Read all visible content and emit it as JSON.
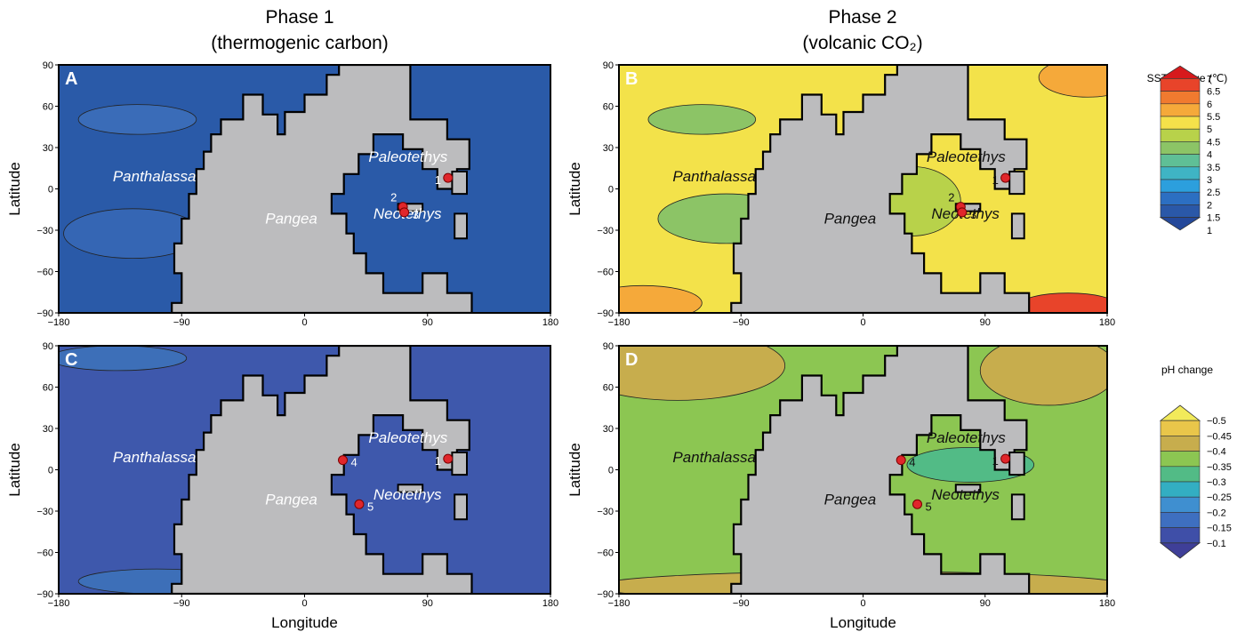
{
  "phase1": {
    "title": "Phase 1",
    "subtitle": "(thermogenic carbon)"
  },
  "phase2": {
    "title": "Phase 2",
    "subtitle": "(volcanic CO₂)"
  },
  "panels": [
    {
      "letter": "A",
      "variable": "SST change",
      "phase": 1,
      "base_color": "#2a5aa8",
      "ocean_labels": [
        "Panthalassa",
        "Paleotethys",
        "Neotethys"
      ],
      "land_label": "Pangea",
      "sites": [
        {
          "id": "1",
          "lon": 105,
          "lat": 8
        },
        {
          "id": "2",
          "lon": 72,
          "lat": -13
        },
        {
          "id": "3",
          "lon": 73,
          "lat": -17
        }
      ]
    },
    {
      "letter": "B",
      "variable": "SST change",
      "phase": 2,
      "base_color": "#f3e24a",
      "ocean_labels": [
        "Panthalassa",
        "Paleotethys",
        "Neotethys"
      ],
      "land_label": "Pangea",
      "sites": [
        {
          "id": "1",
          "lon": 105,
          "lat": 8
        },
        {
          "id": "2",
          "lon": 72,
          "lat": -13
        },
        {
          "id": "3",
          "lon": 73,
          "lat": -17
        }
      ]
    },
    {
      "letter": "C",
      "variable": "pH change",
      "phase": 1,
      "base_color": "#3e58ac",
      "ocean_labels": [
        "Panthalassa",
        "Paleotethys",
        "Neotethys"
      ],
      "land_label": "Pangea",
      "sites": [
        {
          "id": "1",
          "lon": 105,
          "lat": 8
        },
        {
          "id": "4",
          "lon": 28,
          "lat": 7
        },
        {
          "id": "5",
          "lon": 40,
          "lat": -25
        }
      ]
    },
    {
      "letter": "D",
      "variable": "pH change",
      "phase": 2,
      "base_color": "#8cc652",
      "ocean_labels": [
        "Panthalassa",
        "Paleotethys",
        "Neotethys"
      ],
      "land_label": "Pangea",
      "sites": [
        {
          "id": "1",
          "lon": 105,
          "lat": 8
        },
        {
          "id": "4",
          "lon": 28,
          "lat": 7
        },
        {
          "id": "5",
          "lon": 40,
          "lat": -25
        }
      ]
    }
  ],
  "axes": {
    "xlabel": "Longitude",
    "ylabel": "Latitude",
    "xticks": [
      "−180",
      "−90",
      "0",
      "90",
      "180"
    ],
    "yticks": [
      "90",
      "60",
      "30",
      "0",
      "−30",
      "−60",
      "−90"
    ],
    "xlim": [
      -180,
      180
    ],
    "ylim": [
      -90,
      90
    ]
  },
  "legends": {
    "sst": {
      "title": "SST change (℃)",
      "labels": [
        "7",
        "6.5",
        "6",
        "5.5",
        "5",
        "4.5",
        "4",
        "3.5",
        "3",
        "2.5",
        "2",
        "1.5",
        "1"
      ],
      "colors": [
        "#d7191c",
        "#e8442a",
        "#f07a2f",
        "#f5a93a",
        "#f5e14a",
        "#b8d24a",
        "#8cc466",
        "#5fbf96",
        "#3fb4c4",
        "#2c9fdd",
        "#2c6fc2",
        "#2a58a8",
        "#24489a"
      ]
    },
    "ph": {
      "title": "pH change",
      "labels": [
        "−0.5",
        "−0.45",
        "−0.4",
        "−0.35",
        "−0.3",
        "−0.25",
        "−0.2",
        "−0.15",
        "−0.1"
      ],
      "colors": [
        "#f2ea5a",
        "#e9c64a",
        "#c7ad4d",
        "#8cc652",
        "#52bb86",
        "#33aec2",
        "#3f8fd0",
        "#3e6fc0",
        "#3f4fa8",
        "#3f3f98"
      ]
    }
  }
}
